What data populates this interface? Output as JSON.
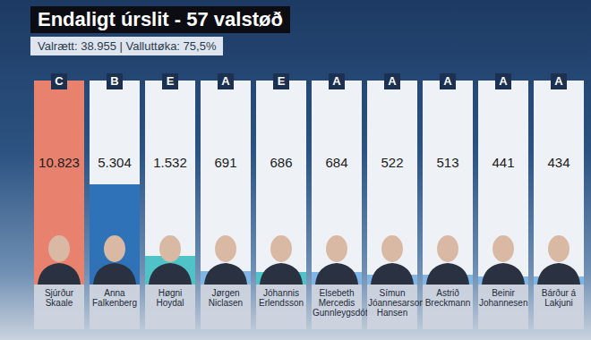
{
  "chart_data": {
    "type": "bar",
    "title": "Endaligt úrslit - 57 valstøð",
    "subtitle": "Valrætt: 38.955 | Valluttøka: 75,5%",
    "categories": [
      "Sjúrður Skaale",
      "Anna Falkenberg",
      "Høgni Hoydal",
      "Jørgen Niclasen",
      "Jóhannis Erlendsson",
      "Elsebeth Mercedis Gunnleygsdóttir",
      "Símun Jóannesarson Hansen",
      "Astrið Breckmann",
      "Beinir Johannesen",
      "Bárður á Lakjuni"
    ],
    "parties": [
      "C",
      "B",
      "E",
      "A",
      "E",
      "A",
      "A",
      "A",
      "A",
      "A"
    ],
    "values": [
      10823,
      5304,
      1532,
      691,
      686,
      684,
      522,
      513,
      441,
      434
    ],
    "value_labels": [
      "10.823",
      "5.304",
      "1.532",
      "691",
      "686",
      "684",
      "522",
      "513",
      "441",
      "434"
    ],
    "colors": [
      "#e8826f",
      "#2f72b8",
      "#4fc3c7",
      "#7fb6e6",
      "#4fc3c7",
      "#7fb6e6",
      "#7fb6e6",
      "#7fb6e6",
      "#7fb6e6",
      "#7fb6e6"
    ],
    "ylim": [
      0,
      10823
    ],
    "grid": false,
    "data_labels": true,
    "tick_labels": false
  }
}
